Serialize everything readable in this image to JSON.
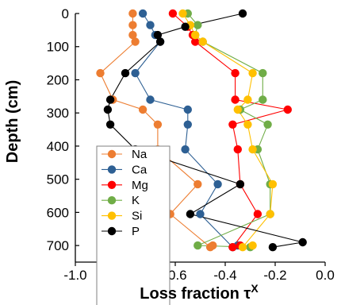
{
  "chart_data": {
    "type": "line",
    "xlabel": "Loss fraction τ",
    "xlabel_superscript": "X",
    "ylabel": "Depth (cm)",
    "xlim": [
      -1.0,
      0.0
    ],
    "ylim": [
      0,
      750
    ],
    "y_inverted": true,
    "x_ticks": [
      -1.0,
      -0.8,
      -0.6,
      -0.4,
      -0.2,
      0.0
    ],
    "x_tick_labels": [
      "-1.0",
      "-0.8",
      "-0.6",
      "-0.4",
      "-0.2",
      "0.0"
    ],
    "y_ticks": [
      0,
      100,
      200,
      300,
      400,
      500,
      600,
      700
    ],
    "y_tick_labels": [
      "0",
      "100",
      "200",
      "300",
      "400",
      "500",
      "600",
      "700"
    ],
    "grid": false,
    "legend_position": "bottom-left",
    "series": [
      {
        "name": "Na",
        "color": "#ED7D31",
        "points": [
          {
            "x": -0.77,
            "y": 0
          },
          {
            "x": -0.77,
            "y": 35
          },
          {
            "x": -0.77,
            "y": 65
          },
          {
            "x": -0.76,
            "y": 85
          },
          {
            "x": -0.9,
            "y": 180
          },
          {
            "x": -0.85,
            "y": 260
          },
          {
            "x": -0.73,
            "y": 290
          },
          {
            "x": -0.67,
            "y": 335
          },
          {
            "x": -0.67,
            "y": 410
          },
          {
            "x": -0.51,
            "y": 515
          },
          {
            "x": -0.62,
            "y": 605
          },
          {
            "x": -0.46,
            "y": 705
          },
          {
            "x": -0.45,
            "y": 700
          }
        ]
      },
      {
        "name": "Ca",
        "color": "#2E6094",
        "points": [
          {
            "x": -0.73,
            "y": 0
          },
          {
            "x": -0.7,
            "y": 35
          },
          {
            "x": -0.68,
            "y": 65
          },
          {
            "x": -0.66,
            "y": 85
          },
          {
            "x": -0.76,
            "y": 180
          },
          {
            "x": -0.7,
            "y": 260
          },
          {
            "x": -0.55,
            "y": 290
          },
          {
            "x": -0.55,
            "y": 335
          },
          {
            "x": -0.56,
            "y": 410
          },
          {
            "x": -0.43,
            "y": 515
          },
          {
            "x": -0.5,
            "y": 605
          },
          {
            "x": -0.37,
            "y": 705
          },
          {
            "x": -0.35,
            "y": 700
          }
        ]
      },
      {
        "name": "Mg",
        "color": "#FF0000",
        "points": [
          {
            "x": -0.61,
            "y": 0
          },
          {
            "x": -0.55,
            "y": 40
          },
          {
            "x": -0.53,
            "y": 65
          },
          {
            "x": -0.52,
            "y": 85
          },
          {
            "x": -0.36,
            "y": 180
          },
          {
            "x": -0.36,
            "y": 260
          },
          {
            "x": -0.15,
            "y": 290
          },
          {
            "x": -0.37,
            "y": 335
          },
          {
            "x": -0.35,
            "y": 410
          },
          {
            "x": -0.34,
            "y": 515
          },
          {
            "x": -0.27,
            "y": 605
          },
          {
            "x": -0.37,
            "y": 705
          },
          {
            "x": -0.34,
            "y": 700
          }
        ]
      },
      {
        "name": "K",
        "color": "#70AD47",
        "points": [
          {
            "x": -0.55,
            "y": 0
          },
          {
            "x": -0.51,
            "y": 35
          },
          {
            "x": -0.52,
            "y": 65
          },
          {
            "x": -0.49,
            "y": 85
          },
          {
            "x": -0.25,
            "y": 180
          },
          {
            "x": -0.25,
            "y": 260
          },
          {
            "x": -0.34,
            "y": 290
          },
          {
            "x": -0.23,
            "y": 335
          },
          {
            "x": -0.27,
            "y": 410
          },
          {
            "x": -0.22,
            "y": 515
          },
          {
            "x": -0.22,
            "y": 605
          },
          {
            "x": -0.51,
            "y": 700
          },
          {
            "x": -0.3,
            "y": 705
          }
        ]
      },
      {
        "name": "Si",
        "color": "#FFC000",
        "points": [
          {
            "x": -0.57,
            "y": 0
          },
          {
            "x": -0.54,
            "y": 35
          },
          {
            "x": -0.52,
            "y": 65
          },
          {
            "x": -0.49,
            "y": 85
          },
          {
            "x": -0.29,
            "y": 180
          },
          {
            "x": -0.31,
            "y": 260
          },
          {
            "x": -0.35,
            "y": 290
          },
          {
            "x": -0.31,
            "y": 335
          },
          {
            "x": -0.29,
            "y": 410
          },
          {
            "x": -0.21,
            "y": 515
          },
          {
            "x": -0.22,
            "y": 605
          },
          {
            "x": -0.33,
            "y": 705
          },
          {
            "x": -0.29,
            "y": 700
          }
        ]
      },
      {
        "name": "P",
        "color": "#000000",
        "points": [
          {
            "x": -0.33,
            "y": 0
          },
          {
            "x": -0.56,
            "y": 40
          },
          {
            "x": -0.67,
            "y": 65
          },
          {
            "x": -0.66,
            "y": 85
          },
          {
            "x": -0.8,
            "y": 180
          },
          {
            "x": -0.86,
            "y": 260
          },
          {
            "x": -0.87,
            "y": 290
          },
          {
            "x": -0.86,
            "y": 335
          },
          {
            "x": -0.76,
            "y": 410
          },
          {
            "x": -0.34,
            "y": 515
          },
          {
            "x": -0.54,
            "y": 605
          },
          {
            "x": -0.09,
            "y": 690
          },
          {
            "x": -0.21,
            "y": 705
          }
        ]
      }
    ]
  }
}
